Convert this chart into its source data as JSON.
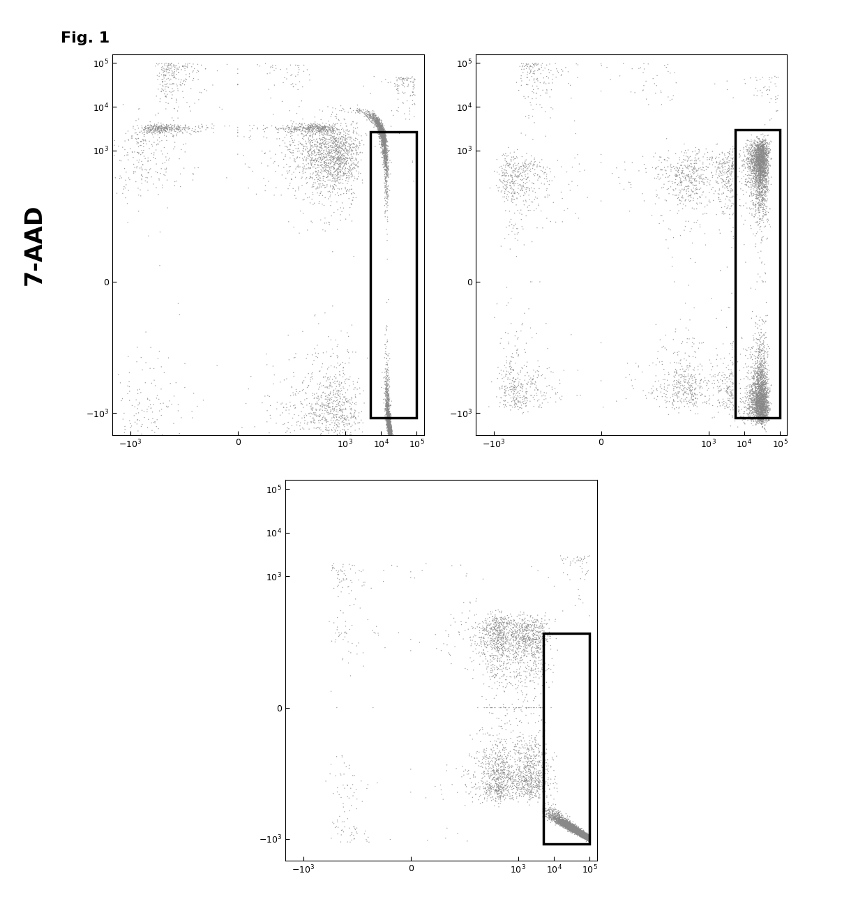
{
  "fig_label": "Fig. 1",
  "ylabel": "7-AAD",
  "background_color": "#ffffff",
  "plot_bg_color": "#ffffff",
  "gate_linewidth": 2.5,
  "gate_color": "black",
  "tick_vals": [
    -1000,
    0,
    1000,
    10000,
    100000
  ],
  "tick_labels": [
    "-10$^3$",
    "0",
    "10$^3$",
    "10$^4$",
    "10$^5$"
  ],
  "xlim": [
    -3.5,
    5.2
  ],
  "ylim": [
    -3.5,
    5.2
  ]
}
